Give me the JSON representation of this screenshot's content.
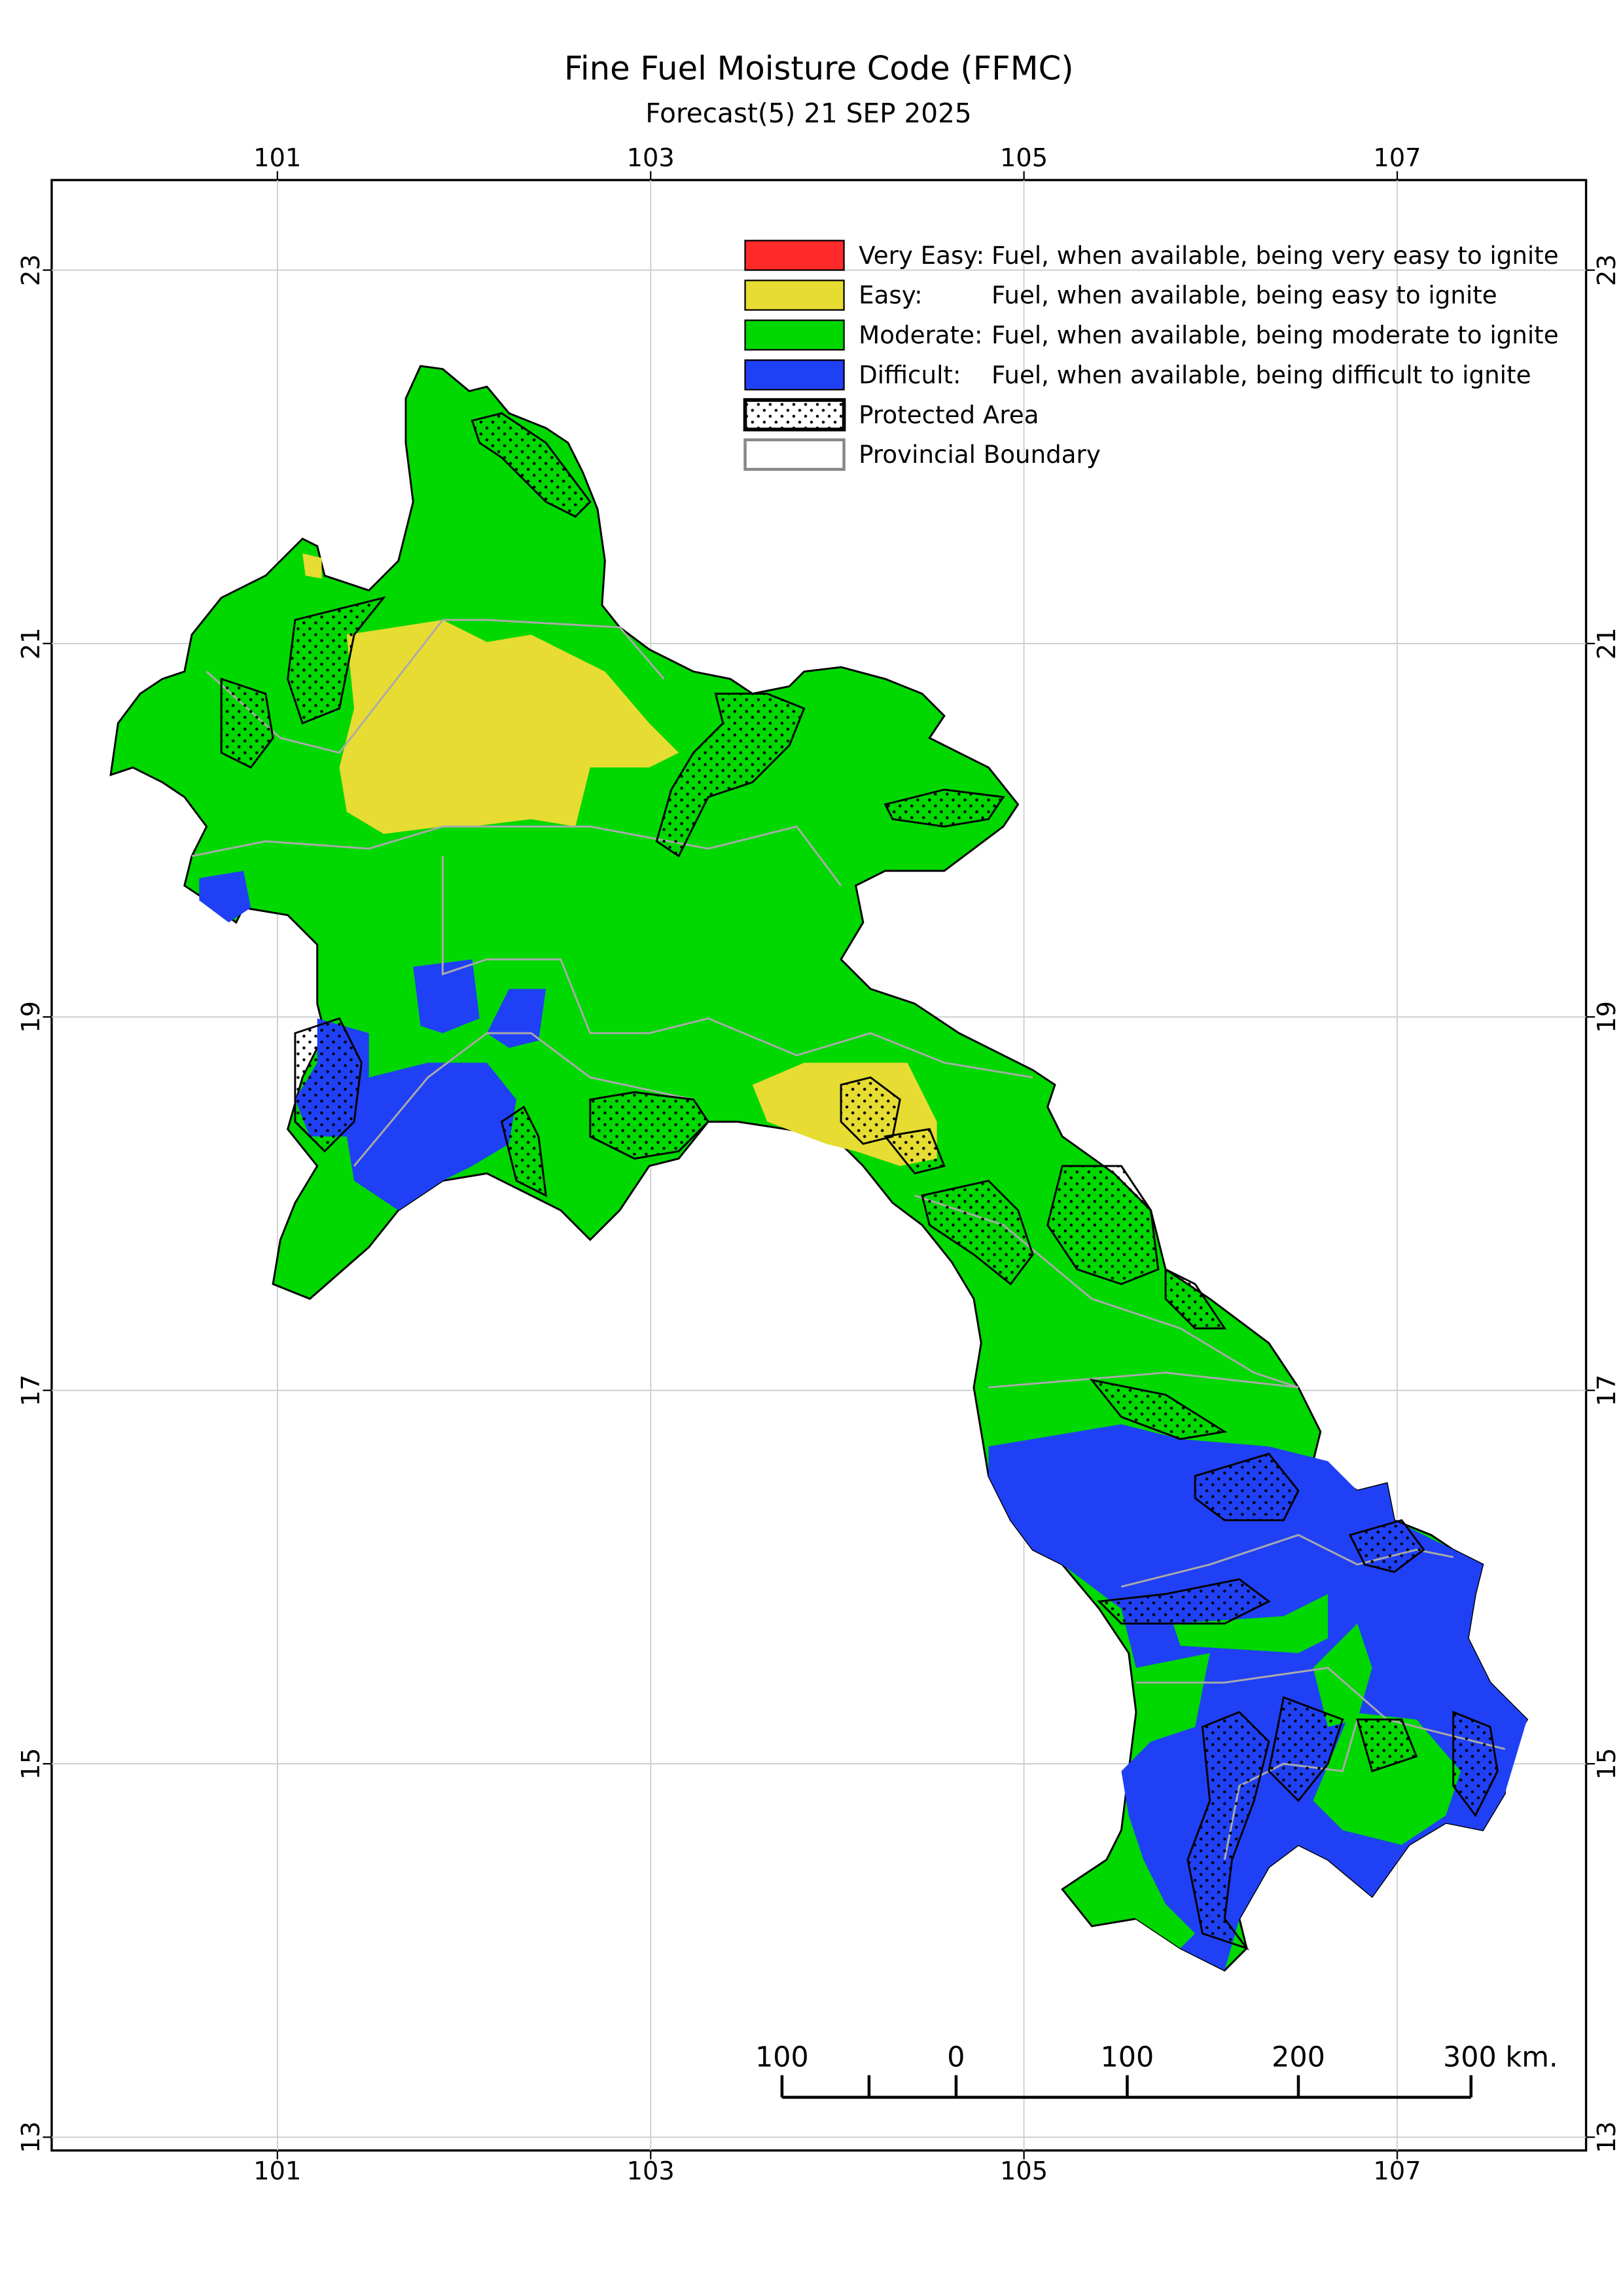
{
  "title": "Fine Fuel Moisture Code (FFMC)",
  "subtitle": "Forecast(5) 21 SEP 2025",
  "lon_ticks": [
    101,
    103,
    105,
    107
  ],
  "lat_ticks": [
    23,
    21,
    19,
    17,
    15,
    13
  ],
  "legend": [
    {
      "label": "Very Easy:",
      "description": "Fuel, when available, being very easy to ignite",
      "color": "#ff2a2a"
    },
    {
      "label": "Easy:",
      "description": "Fuel, when available, being easy to ignite",
      "color": "#e6dc32"
    },
    {
      "label": "Moderate:",
      "description": "Fuel, when available, being moderate to ignite",
      "color": "#00d800"
    },
    {
      "label": "Difficult:",
      "description": "Fuel, when available, being difficult to ignite",
      "color": "#2040f5"
    },
    {
      "label": "Protected Area"
    },
    {
      "label": "Provincial Boundary",
      "color": "#888888"
    }
  ],
  "scale_bar": [
    "100",
    "0",
    "100",
    "200",
    "300 km."
  ]
}
